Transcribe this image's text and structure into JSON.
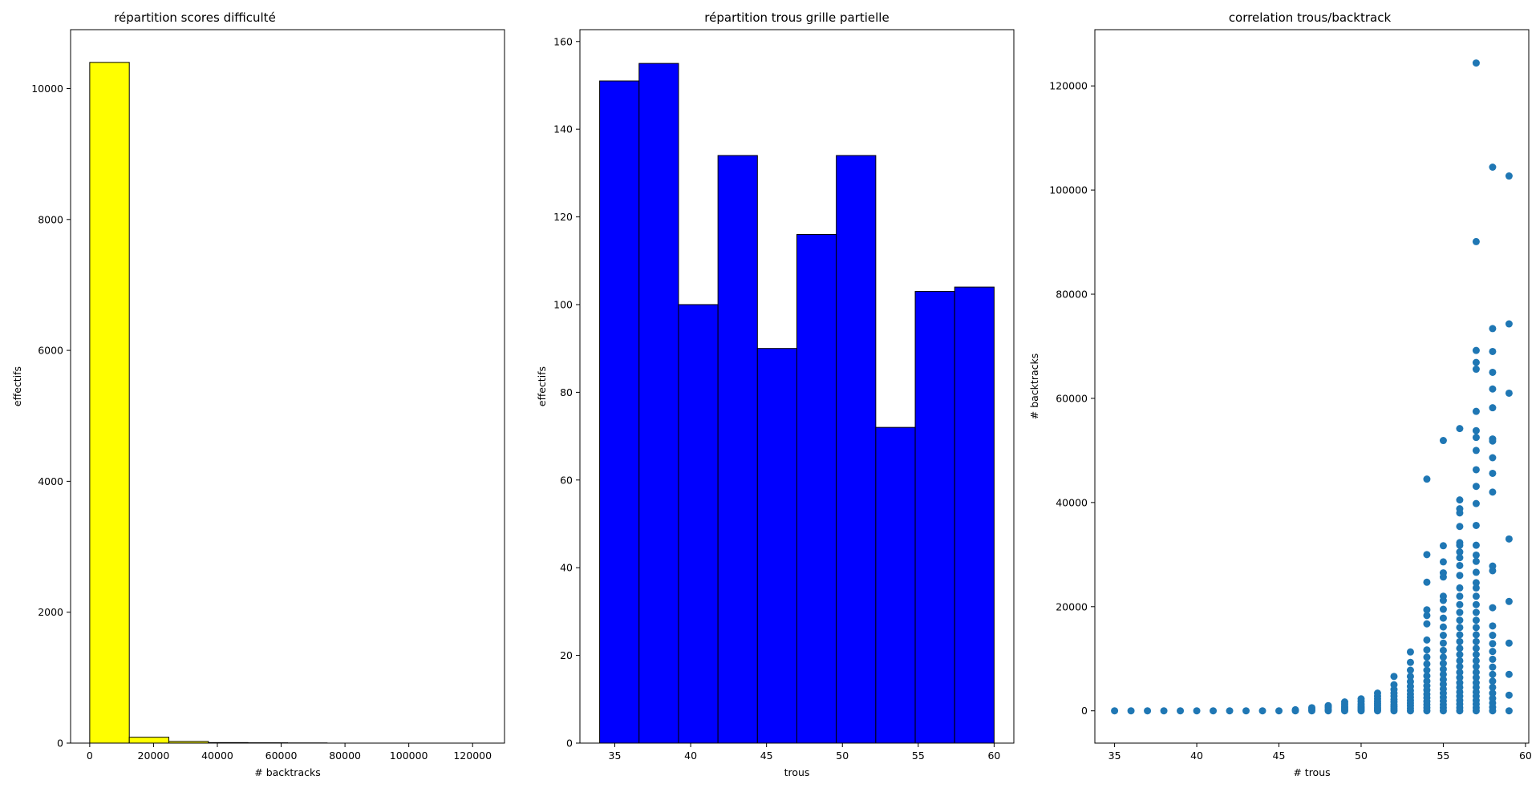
{
  "chart_data": [
    {
      "type": "bar",
      "title": "répartition scores difficulté",
      "xlabel": "# backtracks",
      "ylabel": "effectifs",
      "bin_edges": [
        0,
        12400,
        24800,
        37200,
        49600,
        62000,
        74400
      ],
      "values": [
        10400,
        90,
        25,
        8,
        5,
        3
      ],
      "xlim": [
        -6000,
        130000
      ],
      "ylim": [
        0,
        10900
      ],
      "xticks": [
        0,
        20000,
        40000,
        60000,
        80000,
        100000,
        120000
      ],
      "yticks": [
        0,
        2000,
        4000,
        6000,
        8000,
        10000
      ],
      "fill_color": "#ffff00",
      "edge_color": "#000000",
      "grid": false
    },
    {
      "type": "bar",
      "title": "répartition trous grille partielle",
      "xlabel": "trous",
      "ylabel": "effectifs",
      "bin_edges": [
        34,
        36.6,
        39.2,
        41.8,
        44.4,
        47,
        49.6,
        52.2,
        54.8,
        57.4,
        60
      ],
      "values": [
        151,
        155,
        100,
        134,
        90,
        116,
        134,
        72,
        103,
        104
      ],
      "xlim": [
        32.7,
        61.3
      ],
      "ylim": [
        0,
        162.7
      ],
      "xticks": [
        35,
        40,
        45,
        50,
        55,
        60
      ],
      "yticks": [
        0,
        20,
        40,
        60,
        80,
        100,
        120,
        140,
        160
      ],
      "fill_color": "#0000ff",
      "edge_color": "#000000",
      "grid": false
    },
    {
      "type": "scatter",
      "title": "correlation trous/backtrack",
      "xlabel": "# trous",
      "ylabel": "# backtracks",
      "xlim": [
        33.8,
        60.2
      ],
      "ylim": [
        -6200,
        130800
      ],
      "xticks": [
        35,
        40,
        45,
        50,
        55,
        60
      ],
      "yticks": [
        0,
        20000,
        40000,
        60000,
        80000,
        100000,
        120000
      ],
      "point_color": "#1f77b4",
      "grid": false,
      "points": [
        [
          35,
          0
        ],
        [
          36,
          0
        ],
        [
          37,
          0
        ],
        [
          38,
          0
        ],
        [
          39,
          0
        ],
        [
          40,
          0
        ],
        [
          41,
          0
        ],
        [
          42,
          0
        ],
        [
          43,
          0
        ],
        [
          44,
          0
        ],
        [
          45,
          0
        ],
        [
          46,
          0
        ],
        [
          46,
          200
        ],
        [
          47,
          0
        ],
        [
          47,
          300
        ],
        [
          47,
          600
        ],
        [
          48,
          0
        ],
        [
          48,
          300
        ],
        [
          48,
          700
        ],
        [
          48,
          1000
        ],
        [
          49,
          0
        ],
        [
          49,
          300
        ],
        [
          49,
          600
        ],
        [
          49,
          900
        ],
        [
          49,
          1300
        ],
        [
          49,
          1700
        ],
        [
          50,
          0
        ],
        [
          50,
          300
        ],
        [
          50,
          600
        ],
        [
          50,
          900
        ],
        [
          50,
          1300
        ],
        [
          50,
          1800
        ],
        [
          50,
          2300
        ],
        [
          51,
          0
        ],
        [
          51,
          300
        ],
        [
          51,
          600
        ],
        [
          51,
          1000
        ],
        [
          51,
          1400
        ],
        [
          51,
          1800
        ],
        [
          51,
          2300
        ],
        [
          51,
          2800
        ],
        [
          51,
          3400
        ],
        [
          52,
          0
        ],
        [
          52,
          400
        ],
        [
          52,
          800
        ],
        [
          52,
          1200
        ],
        [
          52,
          1700
        ],
        [
          52,
          2200
        ],
        [
          52,
          2800
        ],
        [
          52,
          3400
        ],
        [
          52,
          4100
        ],
        [
          52,
          5000
        ],
        [
          52,
          6600
        ],
        [
          53,
          0
        ],
        [
          53,
          500
        ],
        [
          53,
          1000
        ],
        [
          53,
          1500
        ],
        [
          53,
          2000
        ],
        [
          53,
          2600
        ],
        [
          53,
          3200
        ],
        [
          53,
          3900
        ],
        [
          53,
          4700
        ],
        [
          53,
          5600
        ],
        [
          53,
          6600
        ],
        [
          53,
          7800
        ],
        [
          53,
          9300
        ],
        [
          53,
          11300
        ],
        [
          54,
          0
        ],
        [
          54,
          600
        ],
        [
          54,
          1200
        ],
        [
          54,
          1800
        ],
        [
          54,
          2500
        ],
        [
          54,
          3200
        ],
        [
          54,
          4000
        ],
        [
          54,
          4800
        ],
        [
          54,
          5700
        ],
        [
          54,
          6700
        ],
        [
          54,
          7800
        ],
        [
          54,
          9000
        ],
        [
          54,
          10300
        ],
        [
          54,
          11700
        ],
        [
          54,
          13600
        ],
        [
          54,
          16700
        ],
        [
          54,
          18300
        ],
        [
          54,
          19400
        ],
        [
          54,
          24700
        ],
        [
          54,
          30000
        ],
        [
          54,
          44500
        ],
        [
          55,
          0
        ],
        [
          55,
          600
        ],
        [
          55,
          1200
        ],
        [
          55,
          1900
        ],
        [
          55,
          2600
        ],
        [
          55,
          3400
        ],
        [
          55,
          4200
        ],
        [
          55,
          5100
        ],
        [
          55,
          6000
        ],
        [
          55,
          7000
        ],
        [
          55,
          8000
        ],
        [
          55,
          9100
        ],
        [
          55,
          10300
        ],
        [
          55,
          11600
        ],
        [
          55,
          13000
        ],
        [
          55,
          14500
        ],
        [
          55,
          16100
        ],
        [
          55,
          17800
        ],
        [
          55,
          19500
        ],
        [
          55,
          21200
        ],
        [
          55,
          22000
        ],
        [
          55,
          25700
        ],
        [
          55,
          26500
        ],
        [
          55,
          28600
        ],
        [
          55,
          31700
        ],
        [
          55,
          51900
        ],
        [
          56,
          0
        ],
        [
          56,
          600
        ],
        [
          56,
          1300
        ],
        [
          56,
          2000
        ],
        [
          56,
          2800
        ],
        [
          56,
          3600
        ],
        [
          56,
          4500
        ],
        [
          56,
          5400
        ],
        [
          56,
          6400
        ],
        [
          56,
          7400
        ],
        [
          56,
          8500
        ],
        [
          56,
          9600
        ],
        [
          56,
          10800
        ],
        [
          56,
          12000
        ],
        [
          56,
          13300
        ],
        [
          56,
          14600
        ],
        [
          56,
          16000
        ],
        [
          56,
          17400
        ],
        [
          56,
          18900
        ],
        [
          56,
          20400
        ],
        [
          56,
          22000
        ],
        [
          56,
          23600
        ],
        [
          56,
          26000
        ],
        [
          56,
          27900
        ],
        [
          56,
          29400
        ],
        [
          56,
          30500
        ],
        [
          56,
          31800
        ],
        [
          56,
          32300
        ],
        [
          56,
          35400
        ],
        [
          56,
          38000
        ],
        [
          56,
          38800
        ],
        [
          56,
          40500
        ],
        [
          56,
          54200
        ],
        [
          57,
          0
        ],
        [
          57,
          600
        ],
        [
          57,
          1300
        ],
        [
          57,
          2000
        ],
        [
          57,
          2800
        ],
        [
          57,
          3600
        ],
        [
          57,
          4500
        ],
        [
          57,
          5400
        ],
        [
          57,
          6400
        ],
        [
          57,
          7400
        ],
        [
          57,
          8500
        ],
        [
          57,
          9600
        ],
        [
          57,
          10800
        ],
        [
          57,
          12000
        ],
        [
          57,
          13300
        ],
        [
          57,
          14600
        ],
        [
          57,
          16000
        ],
        [
          57,
          17400
        ],
        [
          57,
          18900
        ],
        [
          57,
          20400
        ],
        [
          57,
          22000
        ],
        [
          57,
          23600
        ],
        [
          57,
          24600
        ],
        [
          57,
          26600
        ],
        [
          57,
          28700
        ],
        [
          57,
          29900
        ],
        [
          57,
          31800
        ],
        [
          57,
          35600
        ],
        [
          57,
          39800
        ],
        [
          57,
          43100
        ],
        [
          57,
          46300
        ],
        [
          57,
          50000
        ],
        [
          57,
          52500
        ],
        [
          57,
          53800
        ],
        [
          57,
          57500
        ],
        [
          57,
          65600
        ],
        [
          57,
          66900
        ],
        [
          57,
          69200
        ],
        [
          57,
          90100
        ],
        [
          57,
          124400
        ],
        [
          58,
          0
        ],
        [
          58,
          700
        ],
        [
          58,
          1500
        ],
        [
          58,
          2400
        ],
        [
          58,
          3400
        ],
        [
          58,
          4500
        ],
        [
          58,
          5700
        ],
        [
          58,
          7000
        ],
        [
          58,
          8400
        ],
        [
          58,
          9900
        ],
        [
          58,
          11400
        ],
        [
          58,
          12900
        ],
        [
          58,
          14500
        ],
        [
          58,
          16300
        ],
        [
          58,
          19800
        ],
        [
          58,
          26900
        ],
        [
          58,
          27800
        ],
        [
          58,
          42000
        ],
        [
          58,
          45600
        ],
        [
          58,
          48600
        ],
        [
          58,
          51800
        ],
        [
          58,
          52200
        ],
        [
          58,
          58200
        ],
        [
          58,
          61800
        ],
        [
          58,
          65000
        ],
        [
          58,
          69000
        ],
        [
          58,
          73400
        ],
        [
          58,
          104400
        ],
        [
          59,
          0
        ],
        [
          59,
          3000
        ],
        [
          59,
          7000
        ],
        [
          59,
          13000
        ],
        [
          59,
          21000
        ],
        [
          59,
          33000
        ],
        [
          59,
          61000
        ],
        [
          59,
          74300
        ],
        [
          59,
          102700
        ]
      ]
    }
  ]
}
